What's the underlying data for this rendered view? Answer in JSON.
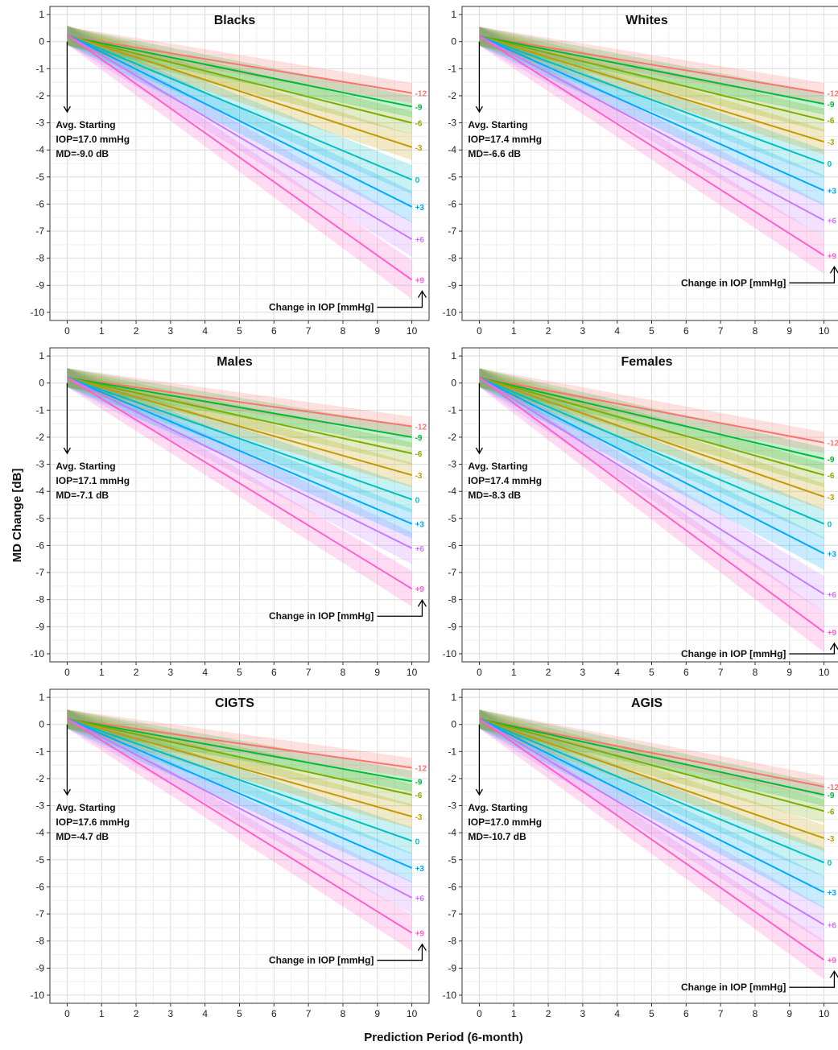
{
  "figure": {
    "ylabel": "MD Change [dB]",
    "xlabel": "Prediction Period (6-month)",
    "legend_title": "Change in IOP [mmHg]"
  },
  "chart_data": [
    {
      "type": "line",
      "title": "Blacks",
      "x": [
        0,
        10
      ],
      "xlim": [
        -0.5,
        10.5
      ],
      "ylim": [
        -10.3,
        1.3
      ],
      "xticks": [
        0,
        1,
        2,
        3,
        4,
        5,
        6,
        7,
        8,
        9,
        10
      ],
      "yticks": [
        1,
        0,
        -1,
        -2,
        -3,
        -4,
        -5,
        -6,
        -7,
        -8,
        -9,
        -10
      ],
      "grid": true,
      "ribbons": true,
      "annotation": {
        "line1": "Avg. Starting",
        "line2": "IOP=17.0 mmHg",
        "line3": "MD=-9.0 dB"
      },
      "legend_note": "Change in IOP [mmHg]",
      "series": [
        {
          "name": "-12",
          "color": "#F8766D",
          "values": [
            0.2,
            -1.9
          ]
        },
        {
          "name": "-9",
          "color": "#00BA38",
          "values": [
            0.2,
            -2.4
          ]
        },
        {
          "name": "-6",
          "color": "#7CAE00",
          "values": [
            0.2,
            -3.0
          ]
        },
        {
          "name": "-3",
          "color": "#C49A00",
          "values": [
            0.25,
            -3.9
          ]
        },
        {
          "name": "0",
          "color": "#00BFC4",
          "values": [
            0.25,
            -5.1
          ]
        },
        {
          "name": "+3",
          "color": "#00A9FF",
          "values": [
            0.25,
            -6.1
          ]
        },
        {
          "name": "+6",
          "color": "#C77CFF",
          "values": [
            0.25,
            -7.3
          ]
        },
        {
          "name": "+9",
          "color": "#FF61CC",
          "values": [
            0.25,
            -8.8
          ]
        }
      ]
    },
    {
      "type": "line",
      "title": "Whites",
      "x": [
        0,
        10
      ],
      "xlim": [
        -0.5,
        10.5
      ],
      "ylim": [
        -10.3,
        1.3
      ],
      "xticks": [
        0,
        1,
        2,
        3,
        4,
        5,
        6,
        7,
        8,
        9,
        10
      ],
      "yticks": [
        1,
        0,
        -1,
        -2,
        -3,
        -4,
        -5,
        -6,
        -7,
        -8,
        -9,
        -10
      ],
      "grid": true,
      "ribbons": true,
      "annotation": {
        "line1": "Avg. Starting",
        "line2": "IOP=17.4 mmHg",
        "line3": "MD=-6.6 dB"
      },
      "legend_note": "Change in IOP [mmHg]",
      "series": [
        {
          "name": "-12",
          "color": "#F8766D",
          "values": [
            0.2,
            -1.9
          ]
        },
        {
          "name": "-9",
          "color": "#00BA38",
          "values": [
            0.2,
            -2.3
          ]
        },
        {
          "name": "-6",
          "color": "#7CAE00",
          "values": [
            0.2,
            -2.9
          ]
        },
        {
          "name": "-3",
          "color": "#C49A00",
          "values": [
            0.2,
            -3.7
          ]
        },
        {
          "name": "0",
          "color": "#00BFC4",
          "values": [
            0.2,
            -4.5
          ]
        },
        {
          "name": "+3",
          "color": "#00A9FF",
          "values": [
            0.2,
            -5.5
          ]
        },
        {
          "name": "+6",
          "color": "#C77CFF",
          "values": [
            0.2,
            -6.6
          ]
        },
        {
          "name": "+9",
          "color": "#FF61CC",
          "values": [
            0.2,
            -7.9
          ]
        }
      ]
    },
    {
      "type": "line",
      "title": "Males",
      "x": [
        0,
        10
      ],
      "xlim": [
        -0.5,
        10.5
      ],
      "ylim": [
        -10.3,
        1.3
      ],
      "xticks": [
        0,
        1,
        2,
        3,
        4,
        5,
        6,
        7,
        8,
        9,
        10
      ],
      "yticks": [
        1,
        0,
        -1,
        -2,
        -3,
        -4,
        -5,
        -6,
        -7,
        -8,
        -9,
        -10
      ],
      "grid": true,
      "ribbons": true,
      "annotation": {
        "line1": "Avg. Starting",
        "line2": "IOP=17.1 mmHg",
        "line3": "MD=-7.1 dB"
      },
      "legend_note": "Change in IOP [mmHg]",
      "series": [
        {
          "name": "-12",
          "color": "#F8766D",
          "values": [
            0.2,
            -1.6
          ]
        },
        {
          "name": "-9",
          "color": "#00BA38",
          "values": [
            0.2,
            -2.0
          ]
        },
        {
          "name": "-6",
          "color": "#7CAE00",
          "values": [
            0.2,
            -2.6
          ]
        },
        {
          "name": "-3",
          "color": "#C49A00",
          "values": [
            0.2,
            -3.4
          ]
        },
        {
          "name": "0",
          "color": "#00BFC4",
          "values": [
            0.2,
            -4.3
          ]
        },
        {
          "name": "+3",
          "color": "#00A9FF",
          "values": [
            0.2,
            -5.2
          ]
        },
        {
          "name": "+6",
          "color": "#C77CFF",
          "values": [
            0.2,
            -6.1
          ]
        },
        {
          "name": "+9",
          "color": "#FF61CC",
          "values": [
            0.2,
            -7.6
          ]
        }
      ]
    },
    {
      "type": "line",
      "title": "Females",
      "x": [
        0,
        10
      ],
      "xlim": [
        -0.5,
        10.5
      ],
      "ylim": [
        -10.3,
        1.3
      ],
      "xticks": [
        0,
        1,
        2,
        3,
        4,
        5,
        6,
        7,
        8,
        9,
        10
      ],
      "yticks": [
        1,
        0,
        -1,
        -2,
        -3,
        -4,
        -5,
        -6,
        -7,
        -8,
        -9,
        -10
      ],
      "grid": true,
      "ribbons": true,
      "annotation": {
        "line1": "Avg. Starting",
        "line2": "IOP=17.4 mmHg",
        "line3": "MD=-8.3 dB"
      },
      "legend_note": "Change in IOP [mmHg]",
      "series": [
        {
          "name": "-12",
          "color": "#F8766D",
          "values": [
            0.2,
            -2.2
          ]
        },
        {
          "name": "-9",
          "color": "#00BA38",
          "values": [
            0.2,
            -2.8
          ]
        },
        {
          "name": "-6",
          "color": "#7CAE00",
          "values": [
            0.2,
            -3.4
          ]
        },
        {
          "name": "-3",
          "color": "#C49A00",
          "values": [
            0.2,
            -4.2
          ]
        },
        {
          "name": "0",
          "color": "#00BFC4",
          "values": [
            0.2,
            -5.2
          ]
        },
        {
          "name": "+3",
          "color": "#00A9FF",
          "values": [
            0.2,
            -6.3
          ]
        },
        {
          "name": "+6",
          "color": "#C77CFF",
          "values": [
            0.2,
            -7.8
          ]
        },
        {
          "name": "+9",
          "color": "#FF61CC",
          "values": [
            0.2,
            -9.2
          ]
        }
      ]
    },
    {
      "type": "line",
      "title": "CIGTS",
      "x": [
        0,
        10
      ],
      "xlim": [
        -0.5,
        10.5
      ],
      "ylim": [
        -10.3,
        1.3
      ],
      "xticks": [
        0,
        1,
        2,
        3,
        4,
        5,
        6,
        7,
        8,
        9,
        10
      ],
      "yticks": [
        1,
        0,
        -1,
        -2,
        -3,
        -4,
        -5,
        -6,
        -7,
        -8,
        -9,
        -10
      ],
      "grid": true,
      "ribbons": true,
      "annotation": {
        "line1": "Avg. Starting",
        "line2": "IOP=17.6 mmHg",
        "line3": "MD=-4.7 dB"
      },
      "legend_note": "Change in IOP [mmHg]",
      "series": [
        {
          "name": "-12",
          "color": "#F8766D",
          "values": [
            0.2,
            -1.6
          ]
        },
        {
          "name": "-9",
          "color": "#00BA38",
          "values": [
            0.2,
            -2.1
          ]
        },
        {
          "name": "-6",
          "color": "#7CAE00",
          "values": [
            0.2,
            -2.6
          ]
        },
        {
          "name": "-3",
          "color": "#C49A00",
          "values": [
            0.2,
            -3.4
          ]
        },
        {
          "name": "0",
          "color": "#00BFC4",
          "values": [
            0.2,
            -4.3
          ]
        },
        {
          "name": "+3",
          "color": "#00A9FF",
          "values": [
            0.2,
            -5.3
          ]
        },
        {
          "name": "+6",
          "color": "#C77CFF",
          "values": [
            0.2,
            -6.4
          ]
        },
        {
          "name": "+9",
          "color": "#FF61CC",
          "values": [
            0.2,
            -7.7
          ]
        }
      ]
    },
    {
      "type": "line",
      "title": "AGIS",
      "x": [
        0,
        10
      ],
      "xlim": [
        -0.5,
        10.5
      ],
      "ylim": [
        -10.3,
        1.3
      ],
      "xticks": [
        0,
        1,
        2,
        3,
        4,
        5,
        6,
        7,
        8,
        9,
        10
      ],
      "yticks": [
        1,
        0,
        -1,
        -2,
        -3,
        -4,
        -5,
        -6,
        -7,
        -8,
        -9,
        -10
      ],
      "grid": true,
      "ribbons": true,
      "annotation": {
        "line1": "Avg. Starting",
        "line2": "IOP=17.0 mmHg",
        "line3": "MD=-10.7 dB"
      },
      "legend_note": "Change in IOP [mmHg]",
      "series": [
        {
          "name": "-12",
          "color": "#F8766D",
          "values": [
            0.2,
            -2.3
          ]
        },
        {
          "name": "-9",
          "color": "#00BA38",
          "values": [
            0.2,
            -2.6
          ]
        },
        {
          "name": "-6",
          "color": "#7CAE00",
          "values": [
            0.2,
            -3.2
          ]
        },
        {
          "name": "-3",
          "color": "#C49A00",
          "values": [
            0.2,
            -4.2
          ]
        },
        {
          "name": "0",
          "color": "#00BFC4",
          "values": [
            0.2,
            -5.1
          ]
        },
        {
          "name": "+3",
          "color": "#00A9FF",
          "values": [
            0.2,
            -6.2
          ]
        },
        {
          "name": "+6",
          "color": "#C77CFF",
          "values": [
            0.2,
            -7.4
          ]
        },
        {
          "name": "+9",
          "color": "#FF61CC",
          "values": [
            0.2,
            -8.7
          ]
        }
      ]
    }
  ]
}
